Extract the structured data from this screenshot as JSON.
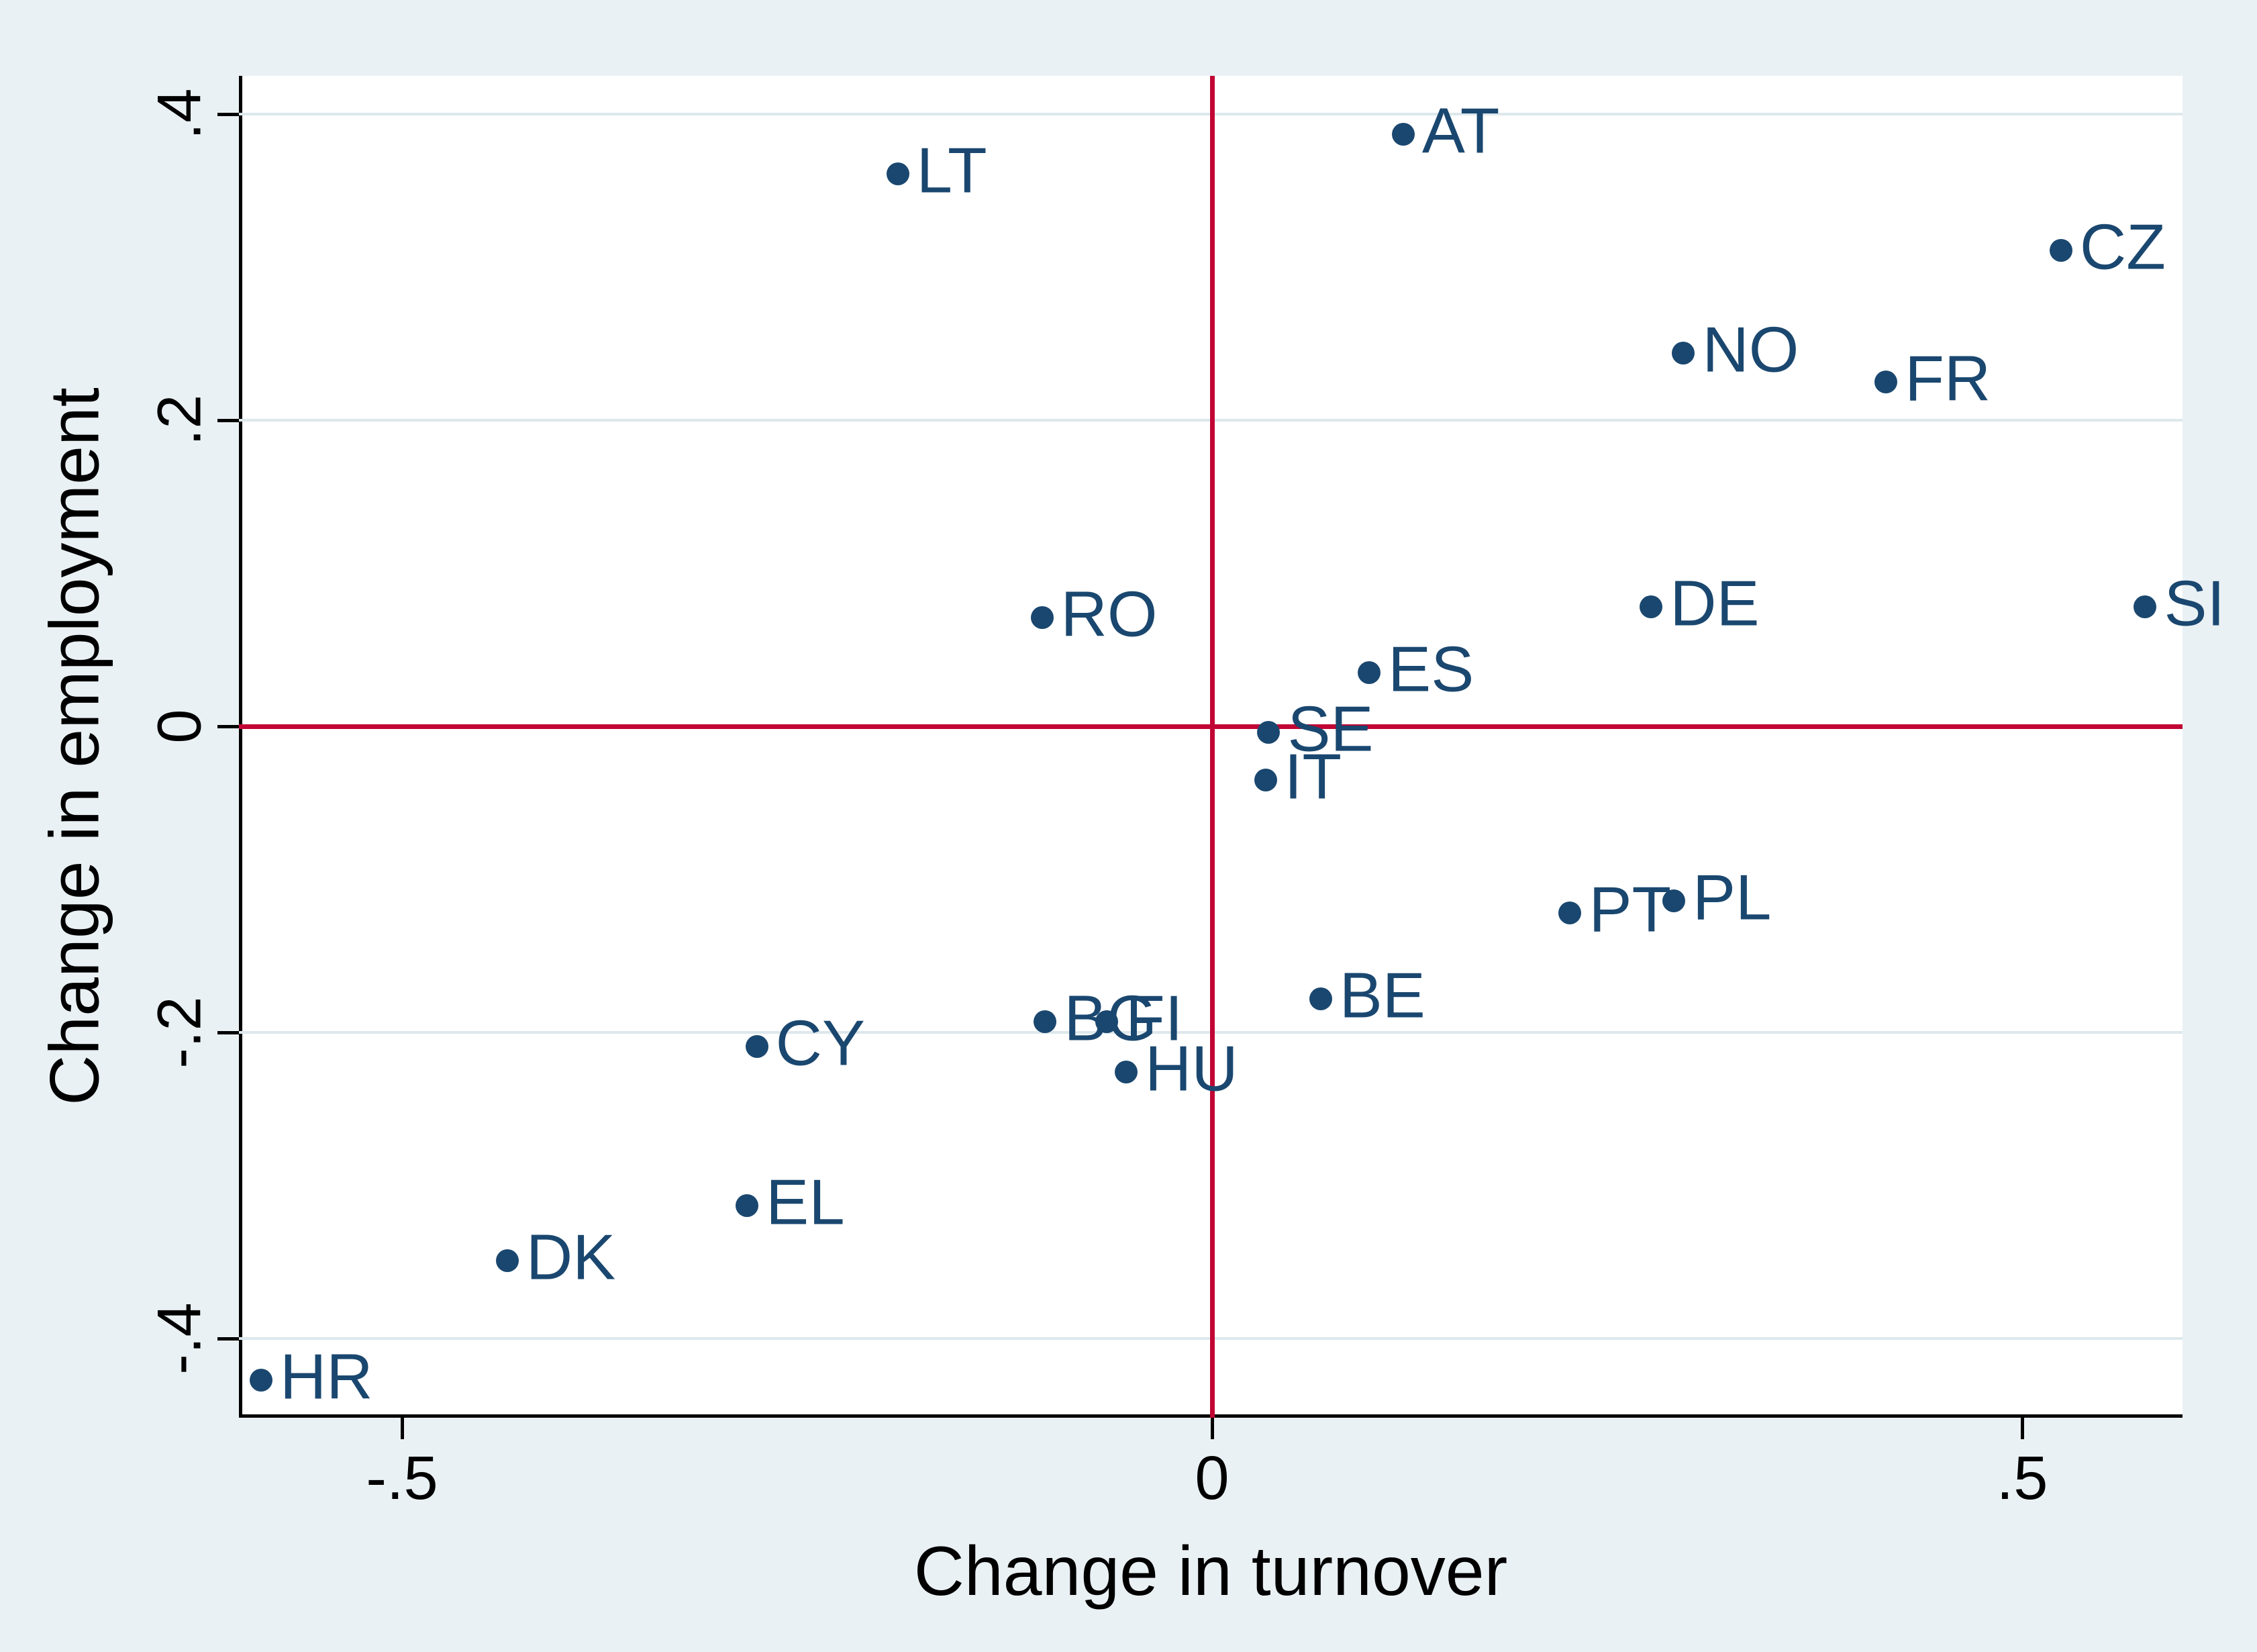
{
  "chart_data": {
    "type": "scatter",
    "title": "",
    "xlabel": "Change in turnover",
    "ylabel": "Change in employment",
    "xlim": [
      -0.6,
      0.62
    ],
    "ylim": [
      -0.45,
      0.425
    ],
    "x_ticks": [
      {
        "value": -0.5,
        "label": "-.5"
      },
      {
        "value": 0,
        "label": "0"
      },
      {
        "value": 0.5,
        "label": ".5"
      }
    ],
    "y_ticks": [
      {
        "value": 0.4,
        "label": ".4"
      },
      {
        "value": 0.2,
        "label": ".2"
      },
      {
        "value": 0,
        "label": "0"
      },
      {
        "value": -0.2,
        "label": "-.2"
      },
      {
        "value": -0.4,
        "label": "-.4"
      }
    ],
    "grid": "horizontal-only",
    "reference_lines": {
      "x": 0,
      "y": 0
    },
    "legend": "none",
    "points": [
      {
        "label": "AT",
        "x": 0.118,
        "y": 0.387
      },
      {
        "label": "LT",
        "x": -0.194,
        "y": 0.361
      },
      {
        "label": "CZ",
        "x": 0.524,
        "y": 0.311
      },
      {
        "label": "NO",
        "x": 0.291,
        "y": 0.244
      },
      {
        "label": "FR",
        "x": 0.416,
        "y": 0.225
      },
      {
        "label": "DE",
        "x": 0.271,
        "y": 0.078
      },
      {
        "label": "SI",
        "x": 0.576,
        "y": 0.078
      },
      {
        "label": "RO",
        "x": -0.105,
        "y": 0.071
      },
      {
        "label": "ES",
        "x": 0.097,
        "y": 0.035
      },
      {
        "label": "SE",
        "x": 0.035,
        "y": -0.004
      },
      {
        "label": "IT",
        "x": 0.033,
        "y": -0.035
      },
      {
        "label": "PL",
        "x": 0.285,
        "y": -0.114
      },
      {
        "label": "PT",
        "x": 0.221,
        "y": -0.122
      },
      {
        "label": "BE",
        "x": 0.067,
        "y": -0.178
      },
      {
        "label": "BG",
        "x": -0.103,
        "y": -0.193
      },
      {
        "label": "FI",
        "x": -0.065,
        "y": -0.193
      },
      {
        "label": "CY",
        "x": -0.281,
        "y": -0.209
      },
      {
        "label": "HU",
        "x": -0.053,
        "y": -0.226
      },
      {
        "label": "EL",
        "x": -0.287,
        "y": -0.313
      },
      {
        "label": "DK",
        "x": -0.435,
        "y": -0.349
      },
      {
        "label": "HR",
        "x": -0.587,
        "y": -0.427
      }
    ]
  },
  "colors": {
    "marker_navy": "#1a476f",
    "reference_red": "#c10534",
    "gridline": "#dde8ec",
    "plot_background": "#ffffff",
    "figure_background": "#eaf1f4",
    "axis_black": "#000000"
  }
}
